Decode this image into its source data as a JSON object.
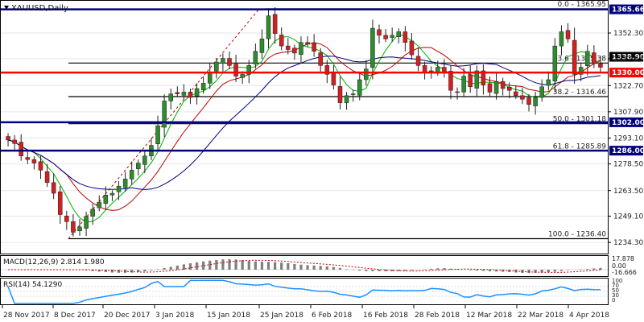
{
  "symbol_title": "XAUUSD,Daily",
  "macd_label": "MACD(12,26,9) 2.814 1.980",
  "rsi_label": "RSI(14) 54.1290",
  "chart_data": {
    "type": "candlestick",
    "price_axis_ticks": [
      "1352.30",
      "1337.85",
      "1322.70",
      "1307.90",
      "1293.10",
      "1278.50",
      "1263.50",
      "1249.10",
      "1234.30"
    ],
    "date_ticks": [
      "28 Nov 2017",
      "8 Dec 2017",
      "20 Dec 2017",
      "3 Jan 2018",
      "15 Jan 2018",
      "25 Jan 2018",
      "6 Feb 2018",
      "16 Feb 2018",
      "28 Feb 2018",
      "12 Mar 2018",
      "22 Mar 2018",
      "4 Apr 2018"
    ],
    "ylim": [
      1228,
      1370
    ],
    "fibonacci_levels": [
      {
        "label": "0.0 - 1365.95",
        "value": 1365.95
      },
      {
        "label": "23.6 - 1335.38",
        "value": 1335.38
      },
      {
        "label": "38.2 - 1316.46",
        "value": 1316.46
      },
      {
        "label": "50.0 - 1301.18",
        "value": 1301.18
      },
      {
        "label": "61.8 - 1285.89",
        "value": 1285.89
      },
      {
        "label": "100.0 - 1236.40",
        "value": 1236.4
      }
    ],
    "horizontal_lines": [
      {
        "label": "1365.66",
        "value": 1365.66,
        "color": "#00007f"
      },
      {
        "label": "1338.90",
        "value": 1338.9,
        "color": "#000000"
      },
      {
        "label": "1330.00",
        "value": 1330.0,
        "color": "#ff0000"
      },
      {
        "label": "1302.00",
        "value": 1302.0,
        "color": "#00007f"
      },
      {
        "label": "1286.00",
        "value": 1286.0,
        "color": "#00007f"
      }
    ],
    "series": [
      {
        "name": "Close",
        "values": [
          1292,
          1290,
          1283,
          1281,
          1279,
          1275,
          1268,
          1262,
          1250,
          1246,
          1240,
          1243,
          1249,
          1253,
          1257,
          1261,
          1262,
          1266,
          1270,
          1275,
          1279,
          1283,
          1289,
          1300,
          1314,
          1318,
          1318,
          1319,
          1316,
          1321,
          1324,
          1330,
          1336,
          1338,
          1334,
          1328,
          1329,
          1334,
          1342,
          1349,
          1362,
          1352,
          1345,
          1343,
          1341,
          1347,
          1346,
          1342,
          1334,
          1329,
          1323,
          1313,
          1317,
          1318,
          1326,
          1332,
          1355,
          1351,
          1349,
          1351,
          1353,
          1347,
          1340,
          1334,
          1330,
          1331,
          1333,
          1330,
          1320,
          1319,
          1328,
          1322,
          1331,
          1323,
          1319,
          1325,
          1321,
          1320,
          1317,
          1315,
          1312,
          1316,
          1322,
          1326,
          1345,
          1353,
          1349,
          1329,
          1333,
          1342,
          1335,
          1333
        ]
      },
      {
        "name": "SMA fast",
        "color": "#00b000"
      },
      {
        "name": "SMA mid",
        "color": "#c00000"
      },
      {
        "name": "SMA slow",
        "color": "#000080"
      }
    ],
    "macd": {
      "macd": 2.814,
      "signal": 1.98,
      "axis_ticks": [
        "17.878",
        "0.00",
        "-16.666"
      ]
    },
    "rsi": {
      "value": 54.129,
      "axis_ticks": [
        "100",
        "70",
        "50",
        "30",
        "0"
      ]
    }
  }
}
